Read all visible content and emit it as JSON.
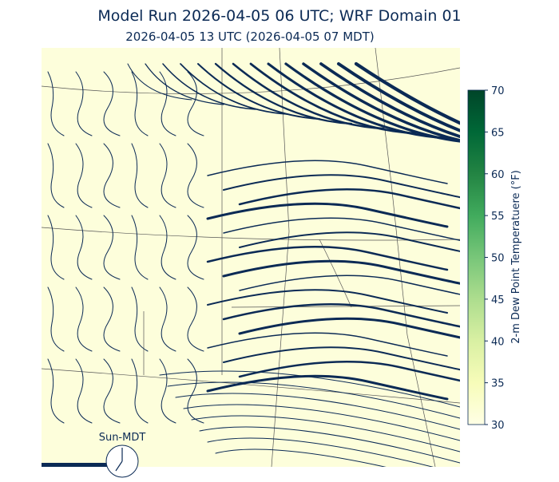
{
  "header": {
    "title": "Model Run 2026-04-05 06 UTC; WRF Domain 01",
    "subtitle": "2026-04-05 13 UTC  (2026-04-05 07 MDT)"
  },
  "colorbar": {
    "label": "2-m Dew Point Temperatuere (°F)",
    "lim": [
      30,
      70
    ],
    "ticks": [
      30,
      35,
      40,
      45,
      50,
      55,
      60,
      65,
      70
    ],
    "colors": [
      "#ffffe5",
      "#f7fcb9",
      "#d9f0a3",
      "#addd8e",
      "#78c679",
      "#41ab5d",
      "#238443",
      "#006837",
      "#004529"
    ]
  },
  "clock": {
    "label": "Sun-MDT"
  }
}
